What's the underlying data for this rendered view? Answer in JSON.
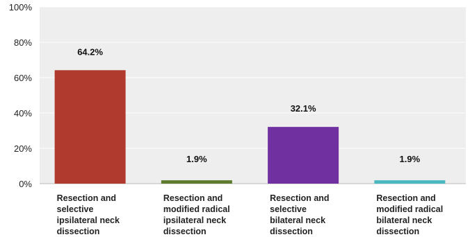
{
  "chart_data": {
    "type": "bar",
    "categories": [
      [
        "Resection and",
        "selective",
        "ipsilateral neck",
        "dissection"
      ],
      [
        "Resection and",
        "modified radical",
        "ipsilateral neck",
        "dissection"
      ],
      [
        "Resection and",
        "selective",
        "bilateral neck",
        "dissection"
      ],
      [
        "Resection and",
        "modified radical",
        "bilateral neck",
        "dissection"
      ]
    ],
    "values": [
      64.2,
      1.9,
      32.1,
      1.9
    ],
    "data_labels": [
      "64.2%",
      "1.9%",
      "32.1%",
      "1.9%"
    ],
    "colors": [
      "#b03a2e",
      "#5e7a2e",
      "#7030a0",
      "#4bb8c0"
    ],
    "ylim": [
      0,
      100
    ],
    "yticks": [
      0,
      20,
      40,
      60,
      80,
      100
    ],
    "ytick_labels": [
      "0%",
      "20%",
      "40%",
      "60%",
      "80%",
      "100%"
    ],
    "title": "",
    "xlabel": "",
    "ylabel": "",
    "grid": true,
    "legend": "none"
  }
}
